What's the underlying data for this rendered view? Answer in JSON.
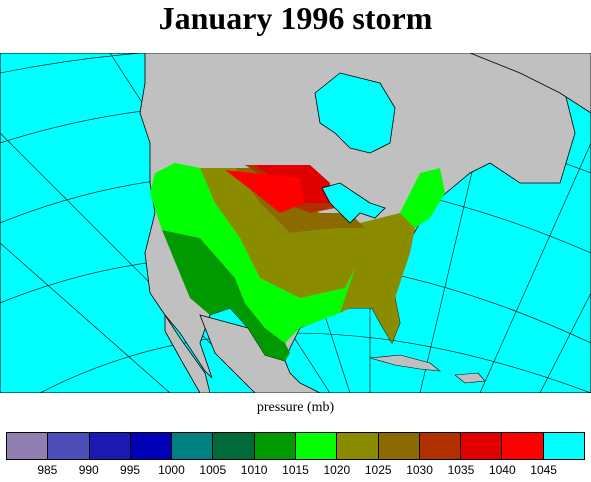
{
  "title": "January 1996 storm",
  "colorbar": {
    "label": "pressure (mb)",
    "colors": [
      "#917fb2",
      "#4d4dba",
      "#1a1ab3",
      "#0000b8",
      "#008080",
      "#006a3a",
      "#009900",
      "#00ff00",
      "#8b8b00",
      "#8b6a00",
      "#b03000",
      "#e00000",
      "#ff0000",
      "#00ffff"
    ],
    "ticks": [
      "985",
      "990",
      "995",
      "1000",
      "1005",
      "1010",
      "1015",
      "1020",
      "1025",
      "1030",
      "1035",
      "1040",
      "1045"
    ]
  },
  "map": {
    "ocean_color": "#00ffff",
    "land_color": "#c0c0c0",
    "field_colors": {
      "1015": "#009900",
      "1020": "#00ff00",
      "1025": "#8b8b00",
      "1030": "#8b6a00",
      "1035": "#b03000",
      "1040": "#e00000",
      "1045": "#ff0000"
    }
  }
}
